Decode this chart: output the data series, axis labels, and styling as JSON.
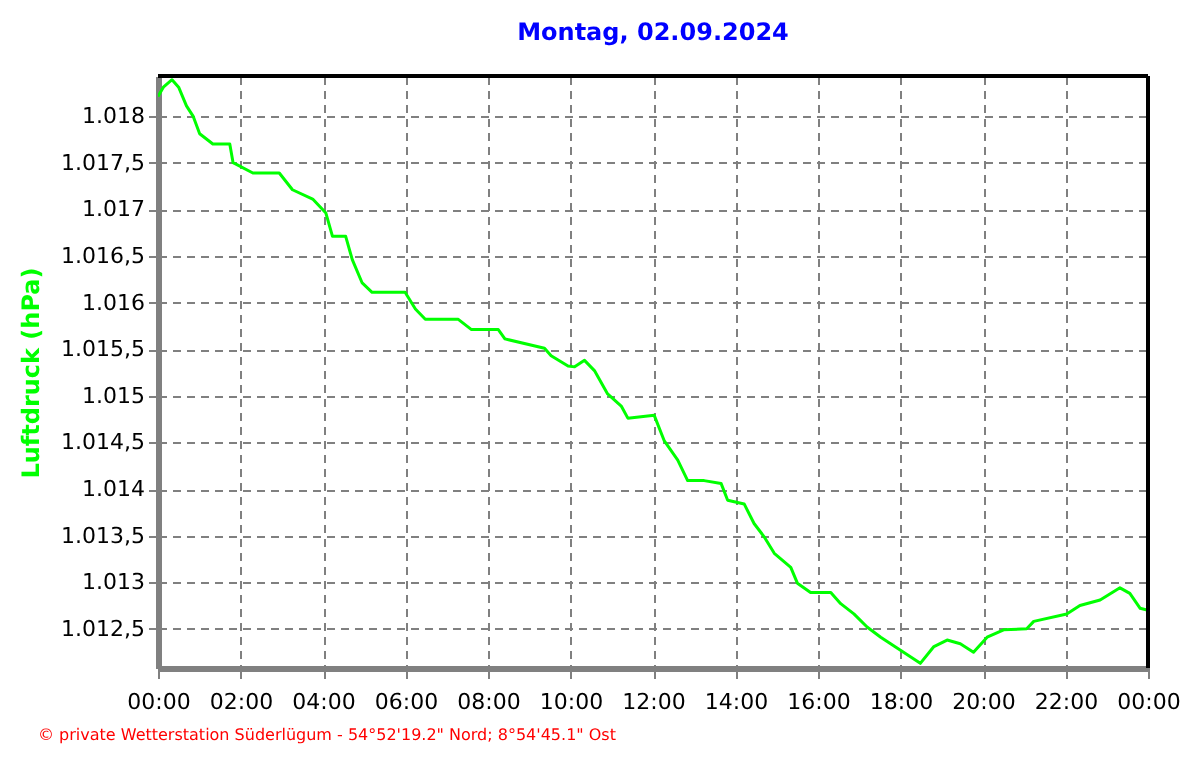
{
  "chart_data": {
    "type": "line",
    "title": "Montag, 02.09.2024",
    "ylabel": "Luftdruck (hPa)",
    "x": [
      0,
      0.13,
      0.34,
      0.5,
      0.69,
      0.85,
      1.01,
      1.33,
      1.74,
      1.82,
      2.3,
      2.94,
      3.26,
      3.75,
      4.07,
      4.23,
      4.55,
      4.71,
      4.95,
      5.19,
      5.99,
      6.24,
      6.48,
      7.28,
      7.6,
      8.25,
      8.41,
      9.37,
      9.53,
      9.94,
      10.1,
      10.34,
      10.58,
      10.9,
      11.23,
      11.39,
      12.03,
      12.27,
      12.6,
      12.84,
      13.24,
      13.65,
      13.81,
      14.21,
      14.45,
      14.69,
      14.94,
      15.34,
      15.5,
      15.82,
      16.31,
      16.55,
      16.87,
      17.19,
      17.52,
      18.0,
      18.48,
      18.81,
      19.13,
      19.45,
      19.77,
      20.1,
      20.5,
      21.06,
      21.23,
      22.03,
      22.35,
      22.84,
      23.32,
      23.56,
      23.81,
      24
    ],
    "series": [
      {
        "color": "#00ff00",
        "values": [
          1018.21,
          1018.31,
          1018.39,
          1018.31,
          1018.11,
          1018.0,
          1017.81,
          1017.7,
          1017.7,
          1017.5,
          1017.39,
          1017.39,
          1017.21,
          1017.11,
          1016.96,
          1016.71,
          1016.71,
          1016.46,
          1016.21,
          1016.11,
          1016.11,
          1015.93,
          1015.82,
          1015.82,
          1015.71,
          1015.71,
          1015.61,
          1015.51,
          1015.43,
          1015.32,
          1015.31,
          1015.38,
          1015.27,
          1015.02,
          1014.89,
          1014.76,
          1014.79,
          1014.52,
          1014.31,
          1014.09,
          1014.09,
          1014.06,
          1013.88,
          1013.84,
          1013.63,
          1013.49,
          1013.31,
          1013.16,
          1012.99,
          1012.89,
          1012.89,
          1012.77,
          1012.66,
          1012.52,
          1012.41,
          1012.27,
          1012.13,
          1012.31,
          1012.38,
          1012.34,
          1012.25,
          1012.41,
          1012.49,
          1012.5,
          1012.58,
          1012.66,
          1012.75,
          1012.81,
          1012.94,
          1012.88,
          1012.72,
          1012.7
        ]
      }
    ],
    "xlim": [
      0,
      24
    ],
    "xticks": [
      {
        "value": 0,
        "label": "00:00"
      },
      {
        "value": 2,
        "label": "02:00"
      },
      {
        "value": 4,
        "label": "04:00"
      },
      {
        "value": 6,
        "label": "06:00"
      },
      {
        "value": 8,
        "label": "08:00"
      },
      {
        "value": 10,
        "label": "10:00"
      },
      {
        "value": 12,
        "label": "12:00"
      },
      {
        "value": 14,
        "label": "14:00"
      },
      {
        "value": 16,
        "label": "16:00"
      },
      {
        "value": 18,
        "label": "18:00"
      },
      {
        "value": 20,
        "label": "20:00"
      },
      {
        "value": 22,
        "label": "22:00"
      },
      {
        "value": 24,
        "label": "00:00"
      }
    ],
    "ylim": [
      1012.08,
      1018.43
    ],
    "yticks": [
      {
        "value": 1012.5,
        "label": "1.012,5"
      },
      {
        "value": 1013,
        "label": "1.013"
      },
      {
        "value": 1013.5,
        "label": "1.013,5"
      },
      {
        "value": 1014,
        "label": "1.014"
      },
      {
        "value": 1014.5,
        "label": "1.014,5"
      },
      {
        "value": 1015,
        "label": "1.015"
      },
      {
        "value": 1015.5,
        "label": "1.015,5"
      },
      {
        "value": 1016,
        "label": "1.016"
      },
      {
        "value": 1016.5,
        "label": "1.016,5"
      },
      {
        "value": 1017,
        "label": "1.017"
      },
      {
        "value": 1017.5,
        "label": "1.017,5"
      },
      {
        "value": 1018,
        "label": "1.018"
      }
    ],
    "grid": true,
    "line_style": "solid",
    "annotations": [
      "© private Wetterstation Süderlügum - 54°52'19.2\" Nord; 8°54'45.1\" Ost"
    ]
  }
}
